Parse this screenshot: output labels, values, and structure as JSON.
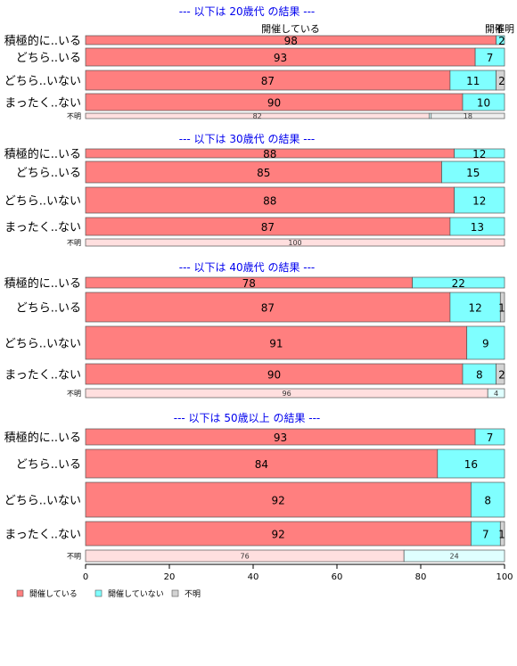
{
  "chart_data": {
    "type": "bar",
    "orientation": "horizontal",
    "stacked": true,
    "xlim": [
      0,
      100
    ],
    "x_ticks": [
      0,
      20,
      40,
      60,
      80,
      100
    ],
    "series_legend": [
      {
        "name": "開催している",
        "color": "#ff7f7f"
      },
      {
        "name": "開催していない",
        "color": "#7fffff"
      },
      {
        "name": "不明",
        "color": "#d3d3d3"
      }
    ],
    "column_header_labels": [
      "開催している",
      "開催",
      "不明"
    ],
    "panels": [
      {
        "title": "--- 以下は 20歳代 の結果 ---",
        "rows": [
          {
            "label": "積極的に..いる",
            "values": [
              98,
              2,
              0
            ],
            "labels": [
              "98",
              "2",
              ""
            ]
          },
          {
            "label": "どちら..いる",
            "values": [
              93,
              7,
              0
            ],
            "labels": [
              "93",
              "7",
              ""
            ]
          },
          {
            "label": "どちら..いない",
            "values": [
              87,
              11,
              2
            ],
            "labels": [
              "87",
              "11",
              "2"
            ]
          },
          {
            "label": "まったく..ない",
            "values": [
              90,
              10,
              0
            ],
            "labels": [
              "90",
              "10",
              ""
            ]
          },
          {
            "label": "不明",
            "values": [
              82,
              0.5,
              18
            ],
            "labels": [
              "82",
              "",
              "18"
            ],
            "faded": true
          }
        ]
      },
      {
        "title": "--- 以下は 30歳代 の結果 ---",
        "rows": [
          {
            "label": "積極的に..いる",
            "values": [
              88,
              12,
              0
            ],
            "labels": [
              "88",
              "12",
              ""
            ]
          },
          {
            "label": "どちら..いる",
            "values": [
              85,
              15,
              0
            ],
            "labels": [
              "85",
              "15",
              ""
            ]
          },
          {
            "label": "どちら..いない",
            "values": [
              88,
              12,
              0
            ],
            "labels": [
              "88",
              "12",
              ""
            ]
          },
          {
            "label": "まったく..ない",
            "values": [
              87,
              13,
              0
            ],
            "labels": [
              "87",
              "13",
              ""
            ]
          },
          {
            "label": "不明",
            "values": [
              100,
              0,
              0
            ],
            "labels": [
              "100",
              "",
              ""
            ],
            "faded": true
          }
        ]
      },
      {
        "title": "--- 以下は 40歳代 の結果 ---",
        "rows": [
          {
            "label": "積極的に..いる",
            "values": [
              78,
              22,
              0
            ],
            "labels": [
              "78",
              "22",
              ""
            ]
          },
          {
            "label": "どちら..いる",
            "values": [
              87,
              12,
              1
            ],
            "labels": [
              "87",
              "12",
              "1"
            ]
          },
          {
            "label": "どちら..いない",
            "values": [
              91,
              9,
              0
            ],
            "labels": [
              "91",
              "9",
              ""
            ]
          },
          {
            "label": "まったく..ない",
            "values": [
              90,
              8,
              2
            ],
            "labels": [
              "90",
              "8",
              "2"
            ]
          },
          {
            "label": "不明",
            "values": [
              96,
              4,
              0
            ],
            "labels": [
              "96",
              "4",
              ""
            ],
            "faded": true
          }
        ]
      },
      {
        "title": "--- 以下は 50歳以上 の結果 ---",
        "rows": [
          {
            "label": "積極的に..いる",
            "values": [
              93,
              7,
              0
            ],
            "labels": [
              "93",
              "7",
              ""
            ]
          },
          {
            "label": "どちら..いる",
            "values": [
              84,
              16,
              0
            ],
            "labels": [
              "84",
              "16",
              ""
            ]
          },
          {
            "label": "どちら..いない",
            "values": [
              92,
              8,
              0
            ],
            "labels": [
              "92",
              "8",
              ""
            ]
          },
          {
            "label": "まったく..ない",
            "values": [
              92,
              7,
              1
            ],
            "labels": [
              "92",
              "7",
              "1"
            ]
          },
          {
            "label": "不明",
            "values": [
              76,
              24,
              0
            ],
            "labels": [
              "76",
              "24",
              ""
            ],
            "faded": true
          }
        ]
      }
    ]
  }
}
